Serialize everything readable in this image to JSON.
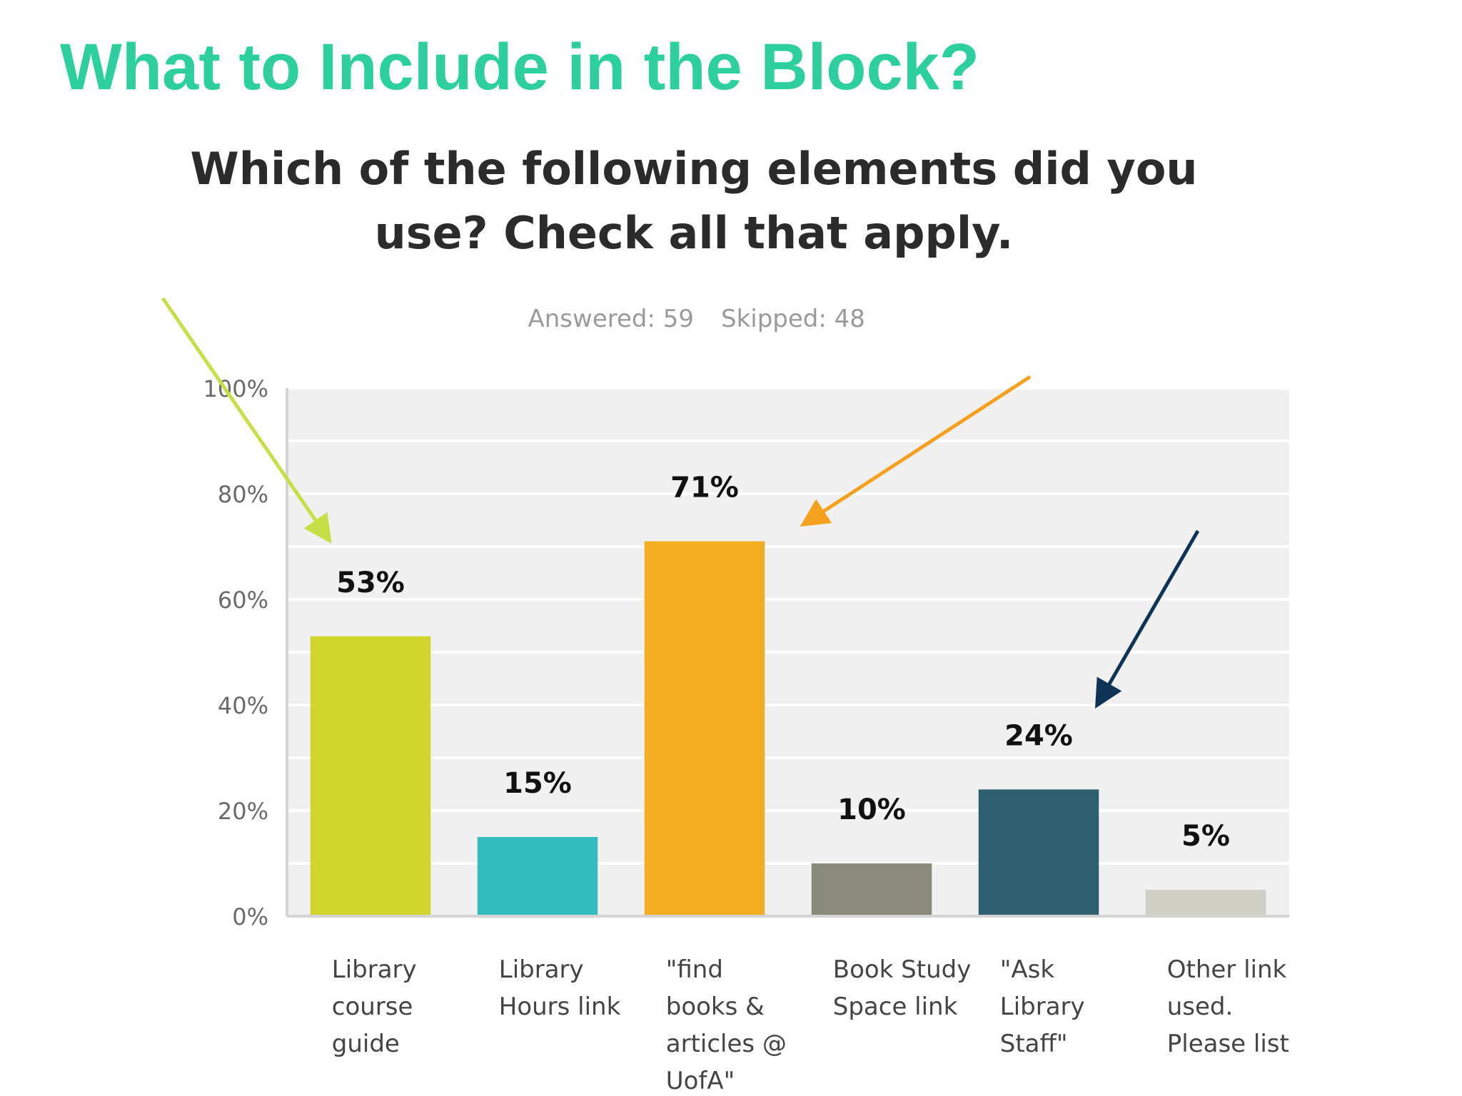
{
  "slide": {
    "title": "What to Include in the Block?"
  },
  "chart_data": {
    "type": "bar",
    "title_lines": [
      "Which of the following elements did you",
      "use? Check all that apply."
    ],
    "answered": "Answered: 59",
    "skipped": "Skipped: 48",
    "categories": [
      [
        "Library",
        "course",
        "guide"
      ],
      [
        "Library",
        "Hours link"
      ],
      [
        "\"find",
        "books &",
        "articles @",
        "UofA\""
      ],
      [
        "Book Study",
        "Space link"
      ],
      [
        "\"Ask",
        "Library",
        "Staff\""
      ],
      [
        "Other link",
        "used.",
        "Please list"
      ]
    ],
    "values": [
      53,
      15,
      71,
      10,
      24,
      5
    ],
    "value_labels": [
      "53%",
      "15%",
      "71%",
      "10%",
      "24%",
      "5%"
    ],
    "colors": [
      "#d1d42a",
      "#33bcc0",
      "#f2ae20",
      "#898a7a",
      "#2e5f6e",
      "#cfcfc5"
    ],
    "ylim": [
      0,
      100
    ],
    "yticks": [
      0,
      20,
      40,
      60,
      80,
      100
    ],
    "ytick_labels": [
      "0%",
      "20%",
      "40%",
      "60%",
      "80%",
      "100%"
    ],
    "grid": true,
    "annotations": [
      {
        "type": "arrow",
        "color": "#c5e046",
        "target_category": 0
      },
      {
        "type": "arrow",
        "color": "#f5a01e",
        "target_category": 2
      },
      {
        "type": "arrow",
        "color": "#0f3354",
        "target_category": 4
      }
    ]
  }
}
